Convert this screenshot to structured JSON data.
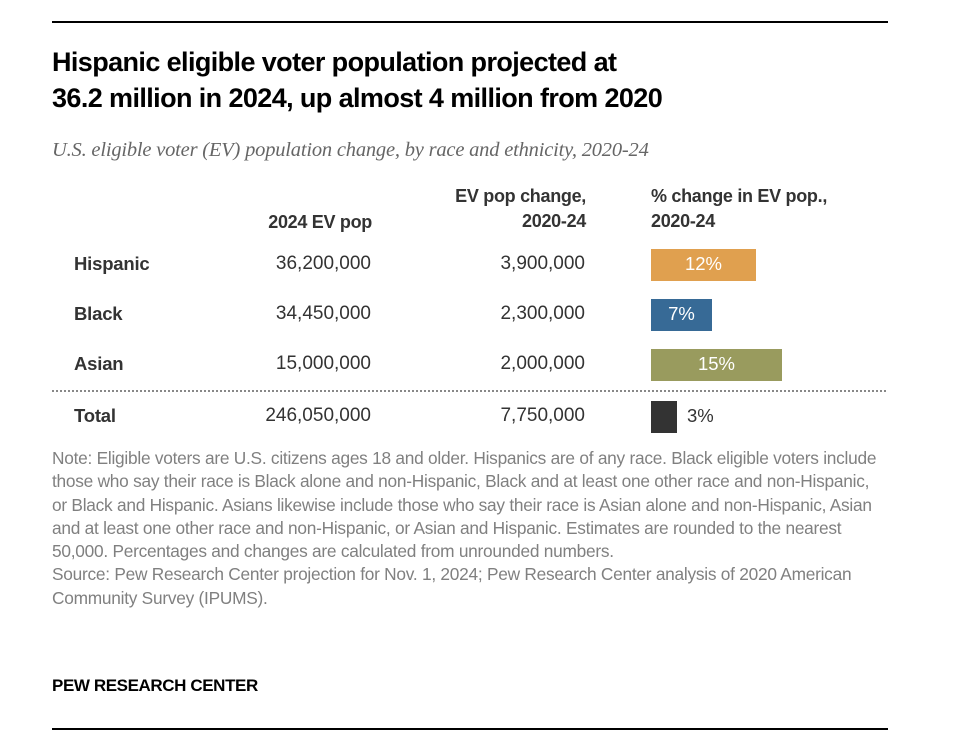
{
  "title": "Hispanic eligible voter population projected at 36.2 million in 2024, up almost 4 million from 2020",
  "title_lines": [
    "Hispanic eligible voter population projected at",
    "36.2 million in 2024, up almost 4 million from 2020"
  ],
  "subtitle": "U.S. eligible voter (EV) population change, by race and ethnicity, 2020-24",
  "headers": {
    "pop": "2024 EV pop",
    "change_line1": "EV pop change,",
    "change_line2": "2020-24",
    "pct_line1": "% change in EV pop.,",
    "pct_line2": "2020-24"
  },
  "chart_data": {
    "type": "table",
    "title": "Hispanic eligible voter population projected at 36.2 million in 2024, up almost 4 million from 2020",
    "subtitle": "U.S. eligible voter (EV) population change, by race and ethnicity, 2020-24",
    "columns": [
      "",
      "2024 EV pop",
      "EV pop change, 2020-24",
      "% change in EV pop., 2020-24"
    ],
    "rows": [
      {
        "category": "Hispanic",
        "ev_pop_2024": "36,200,000",
        "ev_pop_change": "3,900,000",
        "pct_change": 12,
        "pct_label": "12%",
        "color": "#E0A04F",
        "label_inside": true
      },
      {
        "category": "Black",
        "ev_pop_2024": "34,450,000",
        "ev_pop_change": "2,300,000",
        "pct_change": 7,
        "pct_label": "7%",
        "color": "#376A96",
        "label_inside": true
      },
      {
        "category": "Asian",
        "ev_pop_2024": "15,000,000",
        "ev_pop_change": "2,000,000",
        "pct_change": 15,
        "pct_label": "15%",
        "color": "#999B5E",
        "label_inside": true
      },
      {
        "category": "Total",
        "ev_pop_2024": "246,050,000",
        "ev_pop_change": "7,750,000",
        "pct_change": 3,
        "pct_label": "3%",
        "color": "#333333",
        "label_inside": false
      }
    ]
  },
  "note": "Note: Eligible voters are U.S. citizens ages 18 and older. Hispanics are of any race. Black eligible voters include those who say their race is Black alone and non-Hispanic, Black and at least one other race and non-Hispanic, or Black and Hispanic. Asians likewise include those who say their race is Asian alone and non-Hispanic, Asian and at least one other race and non-Hispanic, or Asian and Hispanic. Estimates are rounded to the nearest 50,000. Percentages and changes are calculated from unrounded numbers.",
  "source": "Source: Pew Research Center projection for Nov. 1, 2024; Pew Research Center analysis of 2020 American Community Survey (IPUMS).",
  "brand": "PEW RESEARCH CENTER"
}
